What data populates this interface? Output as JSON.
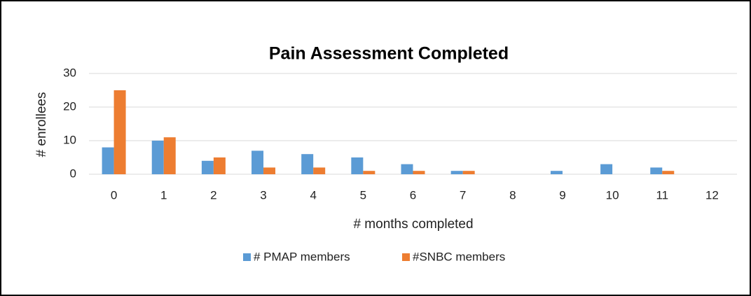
{
  "chart_data": {
    "type": "bar",
    "title": "Pain Assessment Completed",
    "x_label": "# months completed",
    "y_label": "# enrollees",
    "categories": [
      "0",
      "1",
      "2",
      "3",
      "4",
      "5",
      "6",
      "7",
      "8",
      "9",
      "10",
      "11",
      "12"
    ],
    "series": [
      {
        "name": "# PMAP members",
        "color": "#5b9bd5",
        "values": [
          8,
          10,
          4,
          7,
          6,
          5,
          3,
          1,
          0,
          1,
          3,
          2,
          0
        ]
      },
      {
        "name": "#SNBC members",
        "color": "#ed7d31",
        "values": [
          25,
          11,
          5,
          2,
          2,
          1,
          1,
          1,
          0,
          0,
          0,
          1,
          0
        ]
      }
    ],
    "ylim": [
      0,
      30
    ],
    "yticks": [
      0,
      10,
      20,
      30
    ],
    "grid": true,
    "legend": "bottom"
  }
}
